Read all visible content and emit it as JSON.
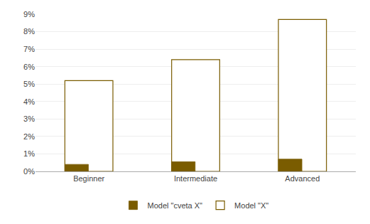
{
  "chart_data": {
    "type": "bar",
    "categories": [
      "Beginner",
      "Intermediate",
      "Advanced"
    ],
    "series": [
      {
        "name": "Model \"X\"",
        "color": "#ffffff",
        "values": [
          0.052,
          0.064,
          0.087
        ]
      },
      {
        "name": "Model \"cveta X\"",
        "color": "#7a5c00",
        "values": [
          0.004,
          0.0055,
          0.007
        ]
      }
    ],
    "ylim": [
      0,
      0.09
    ],
    "yticks": [
      {
        "value": 0,
        "label": "0%"
      },
      {
        "value": 0.01,
        "label": "1%"
      },
      {
        "value": 0.02,
        "label": "2%"
      },
      {
        "value": 0.03,
        "label": "3%"
      },
      {
        "value": 0.04,
        "label": "4%"
      },
      {
        "value": 0.05,
        "label": "5%"
      },
      {
        "value": 0.06,
        "label": "6%"
      },
      {
        "value": 0.07,
        "label": "7%"
      },
      {
        "value": 0.08,
        "label": "8%"
      },
      {
        "value": 0.09,
        "label": "9%"
      }
    ],
    "grid": true,
    "legend": "bottom"
  }
}
